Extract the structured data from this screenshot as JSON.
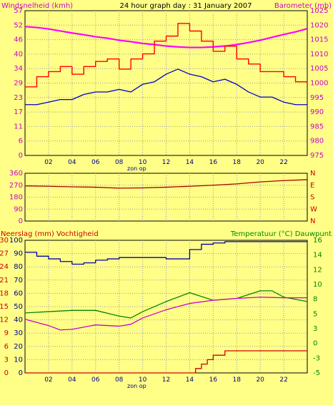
{
  "chart_data": [
    {
      "type": "line",
      "title": "24 hour graph day : 31 January 2007",
      "left_axis_label": "Windsnelheid (kmh)",
      "right_axis_label": "Barometer (mb)",
      "x_ticks": [
        "02",
        "04",
        "06",
        "08",
        "10",
        "12",
        "14",
        "16",
        "18",
        "20",
        "22"
      ],
      "x_marker_label": "zon op",
      "x_range_hours": [
        0,
        24
      ],
      "left_axis": {
        "ticks": [
          "0",
          "6",
          "11",
          "17",
          "23",
          "29",
          "34",
          "40",
          "46",
          "52",
          "57"
        ],
        "ylim": [
          0,
          57
        ]
      },
      "right_axis": {
        "ticks": [
          "975",
          "980",
          "985",
          "990",
          "995",
          "1000",
          "1005",
          "1010",
          "1015",
          "1020",
          "1025"
        ],
        "ylim": [
          975,
          1025
        ]
      },
      "grid": true,
      "series": [
        {
          "name": "Barometer",
          "color": "#FF00FF",
          "axis": "right",
          "x": [
            0,
            1,
            2,
            3,
            4,
            5,
            6,
            7,
            8,
            9,
            10,
            11,
            12,
            13,
            14,
            15,
            16,
            17,
            18,
            19,
            20,
            21,
            22,
            23,
            24
          ],
          "y": [
            1019.5,
            1019.2,
            1018.7,
            1018.0,
            1017.3,
            1016.7,
            1016.0,
            1015.5,
            1014.8,
            1014.3,
            1013.7,
            1013.3,
            1012.8,
            1012.5,
            1012.3,
            1012.3,
            1012.5,
            1012.8,
            1013.3,
            1014.0,
            1014.8,
            1015.8,
            1016.8,
            1017.7,
            1018.8
          ]
        },
        {
          "name": "Wind gust",
          "color": "#FF0000",
          "axis": "left",
          "x": [
            0,
            1,
            2,
            3,
            4,
            5,
            6,
            7,
            8,
            9,
            10,
            11,
            12,
            13,
            14,
            15,
            16,
            17,
            18,
            19,
            20,
            21,
            22,
            23,
            24
          ],
          "y": [
            27,
            31,
            33,
            35,
            32,
            35,
            37,
            38,
            34,
            38,
            40,
            45,
            47,
            52,
            49,
            45,
            41,
            43,
            38,
            36,
            33,
            33,
            31,
            29,
            28
          ]
        },
        {
          "name": "Wind average",
          "color": "#0000CC",
          "axis": "left",
          "x": [
            0,
            1,
            2,
            3,
            4,
            5,
            6,
            7,
            8,
            9,
            10,
            11,
            12,
            13,
            14,
            15,
            16,
            17,
            18,
            19,
            20,
            21,
            22,
            23,
            24
          ],
          "y": [
            20,
            20,
            21,
            22,
            22,
            24,
            25,
            25,
            26,
            25,
            28,
            29,
            32,
            34,
            32,
            31,
            29,
            30,
            28,
            25,
            23,
            23,
            21,
            20,
            20
          ]
        }
      ]
    },
    {
      "type": "line",
      "title": "",
      "x_range_hours": [
        0,
        24
      ],
      "left_axis": {
        "ticks": [
          "0",
          "90",
          "180",
          "270",
          "360"
        ],
        "ylim": [
          0,
          360
        ]
      },
      "right_axis": {
        "ticks": [
          "N",
          "W",
          "S",
          "E",
          "N"
        ]
      },
      "grid": true,
      "series": [
        {
          "name": "Wind direction",
          "color": "#AA0000",
          "axis": "left",
          "x": [
            0,
            2,
            4,
            6,
            8,
            10,
            12,
            14,
            16,
            18,
            20,
            22,
            24
          ],
          "y": [
            265,
            262,
            258,
            255,
            248,
            250,
            255,
            262,
            270,
            280,
            295,
            305,
            312
          ]
        }
      ]
    },
    {
      "type": "line",
      "title": "",
      "left_axis_label": "Neerslag (mm)  Vochtigheid",
      "right_axis_label": "Temperatuur (°C) Dauwpunt",
      "x_ticks": [
        "02",
        "04",
        "06",
        "08",
        "10",
        "12",
        "14",
        "16",
        "18",
        "20",
        "22"
      ],
      "x_marker_label": "zon op",
      "x_range_hours": [
        0,
        24
      ],
      "left_axis_outer": {
        "ticks": [
          "0",
          "3",
          "6",
          "9",
          "12",
          "15",
          "18",
          "21",
          "24",
          "27",
          "30"
        ],
        "ylim": [
          0,
          30
        ],
        "color": "#CC0000"
      },
      "left_axis_inner": {
        "ticks": [
          "0",
          "10",
          "20",
          "30",
          "40",
          "50",
          "60",
          "70",
          "80",
          "90",
          "100"
        ],
        "ylim": [
          0,
          100
        ],
        "color": "#000080"
      },
      "right_axis": {
        "ticks": [
          "-5",
          "-3",
          "0",
          "3",
          "5",
          "8",
          "10",
          "12",
          "14",
          "16"
        ],
        "ylim": [
          -5,
          16
        ],
        "color": "#008800"
      },
      "grid": true,
      "series": [
        {
          "name": "Vochtigheid",
          "color": "#0000AA",
          "axis": "left_inner",
          "x": [
            0,
            1,
            2,
            3,
            4,
            5,
            6,
            7,
            8,
            9,
            10,
            11,
            12,
            13,
            14,
            15,
            16,
            17,
            18,
            19,
            20,
            21,
            22,
            23,
            24
          ],
          "y": [
            91,
            88,
            86,
            84,
            82,
            83,
            85,
            86,
            87,
            87,
            87,
            87,
            86,
            86,
            93,
            97,
            98,
            99,
            99,
            99,
            99,
            99,
            99,
            99,
            99
          ]
        },
        {
          "name": "Temperatuur",
          "color": "#008800",
          "axis": "right",
          "x": [
            0,
            2,
            4,
            6,
            8,
            9,
            10,
            12,
            14,
            16,
            18,
            20,
            21,
            22,
            24
          ],
          "y": [
            4.5,
            4.7,
            4.9,
            4.9,
            4.0,
            3.7,
            4.7,
            6.3,
            7.7,
            6.5,
            6.8,
            8.0,
            8.0,
            7.0,
            6.3
          ]
        },
        {
          "name": "Dauwpunt",
          "color": "#CC00CC",
          "axis": "right",
          "x": [
            0,
            2,
            3,
            4,
            6,
            8,
            9,
            10,
            12,
            14,
            16,
            18,
            20,
            22,
            24
          ],
          "y": [
            3.5,
            2.5,
            1.8,
            1.9,
            2.6,
            2.4,
            2.7,
            3.7,
            5.0,
            6.0,
            6.5,
            6.8,
            7.0,
            6.9,
            6.9
          ]
        },
        {
          "name": "Neerslag",
          "color": "#CC0000",
          "axis": "left_outer",
          "x": [
            0,
            12,
            13,
            14,
            14.5,
            15,
            15.5,
            16,
            17,
            18,
            19,
            20,
            21,
            22,
            23,
            24
          ],
          "y": [
            0,
            0,
            0,
            0,
            1,
            2,
            3,
            4,
            5,
            5,
            5,
            5,
            5,
            5,
            5,
            5
          ]
        }
      ]
    }
  ]
}
